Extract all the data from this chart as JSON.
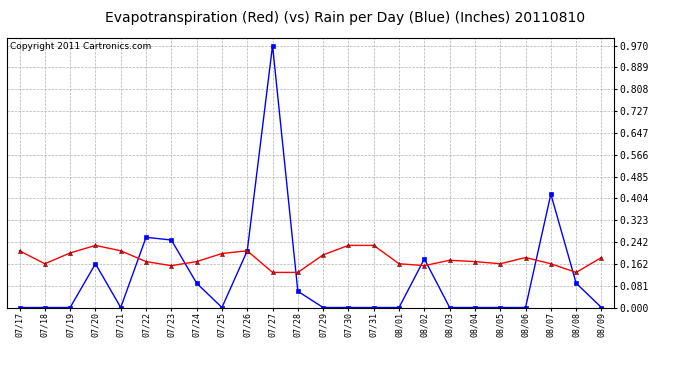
{
  "title": "Evapotranspiration (Red) (vs) Rain per Day (Blue) (Inches) 20110810",
  "copyright": "Copyright 2011 Cartronics.com",
  "labels": [
    "07/17",
    "07/18",
    "07/19",
    "07/20",
    "07/21",
    "07/22",
    "07/23",
    "07/24",
    "07/25",
    "07/26",
    "07/27",
    "07/28",
    "07/29",
    "07/30",
    "07/31",
    "08/01",
    "08/02",
    "08/03",
    "08/04",
    "08/05",
    "08/06",
    "08/07",
    "08/08",
    "08/09"
  ],
  "red_values": [
    0.21,
    0.162,
    0.202,
    0.23,
    0.21,
    0.17,
    0.155,
    0.17,
    0.2,
    0.21,
    0.13,
    0.13,
    0.195,
    0.23,
    0.23,
    0.162,
    0.155,
    0.175,
    0.17,
    0.162,
    0.185,
    0.162,
    0.13,
    0.185
  ],
  "blue_values": [
    0.0,
    0.0,
    0.0,
    0.162,
    0.0,
    0.26,
    0.25,
    0.09,
    0.0,
    0.21,
    0.97,
    0.06,
    0.0,
    0.0,
    0.0,
    0.0,
    0.18,
    0.0,
    0.0,
    0.0,
    0.0,
    0.42,
    0.09,
    0.0
  ],
  "yticks": [
    0.0,
    0.081,
    0.162,
    0.242,
    0.323,
    0.404,
    0.485,
    0.566,
    0.647,
    0.727,
    0.808,
    0.889,
    0.97
  ],
  "ylim": [
    0.0,
    1.0
  ],
  "bg_color": "#FFFFFF",
  "plot_bg": "#FFFFFF",
  "grid_color": "#AAAAAA",
  "title_fontsize": 10,
  "copyright_fontsize": 6.5,
  "tick_fontsize": 7,
  "xtick_fontsize": 6
}
